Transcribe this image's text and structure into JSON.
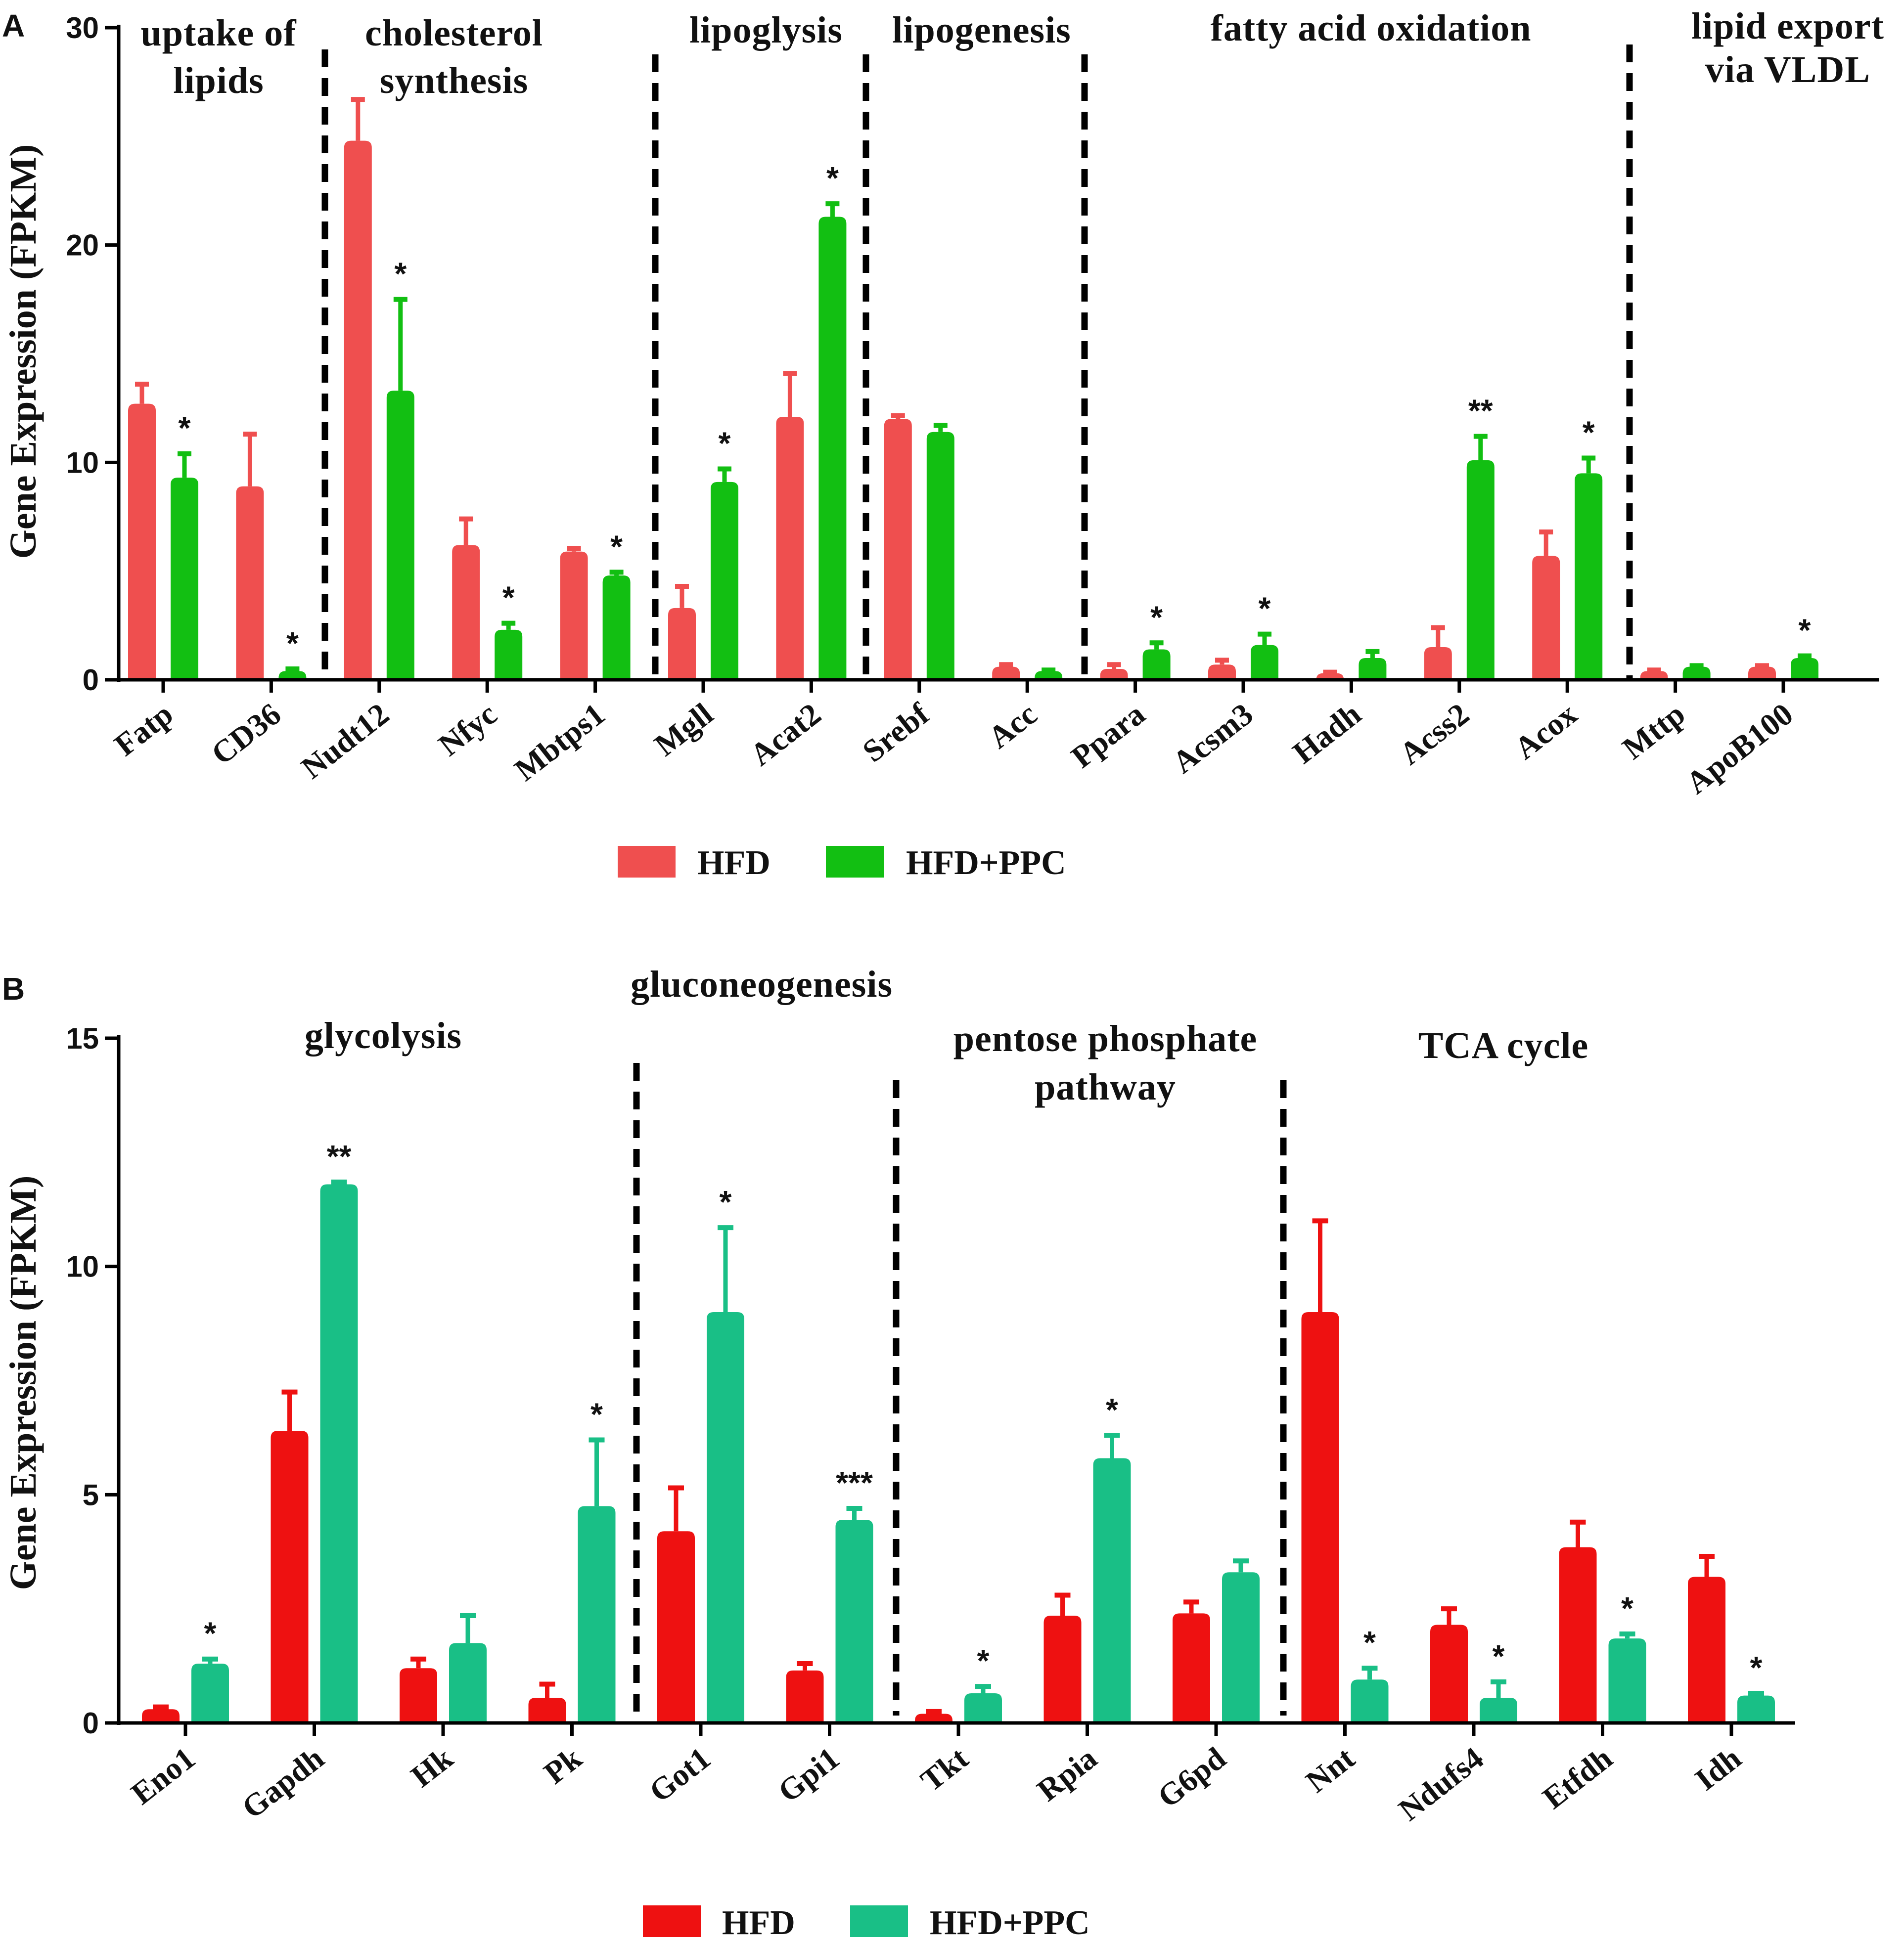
{
  "chart_data": [
    {
      "panel": "A",
      "type": "bar",
      "ylabel": "Gene Expression (FPKM)",
      "ylim": [
        0,
        30
      ],
      "yticks": [
        0,
        10,
        20,
        30
      ],
      "legend": {
        "position": "bottom",
        "entries": [
          "HFD",
          "HFD+PPC"
        ]
      },
      "colors": {
        "HFD": "#ef4f4f",
        "HFD+PPC": "#12bf12"
      },
      "categories": [
        "Fatp",
        "CD36",
        "Nudt12",
        "Nfyc",
        "Mbtps1",
        "Mgll",
        "Acat2",
        "Srebf",
        "Acc",
        "Ppara",
        "Acsm3",
        "Hadh",
        "Acss2",
        "Acox",
        "Mttp",
        "ApoB100"
      ],
      "series": [
        {
          "name": "HFD",
          "values": [
            12.7,
            8.9,
            24.8,
            6.2,
            5.9,
            3.3,
            12.1,
            12.0,
            0.6,
            0.5,
            0.7,
            0.3,
            1.5,
            5.7,
            0.4,
            0.6
          ],
          "errors": [
            0.9,
            2.4,
            1.9,
            1.2,
            0.15,
            1.0,
            2.0,
            0.15,
            0.1,
            0.2,
            0.2,
            0.05,
            0.9,
            1.1,
            0.05,
            0.05
          ]
        },
        {
          "name": "HFD+PPC",
          "values": [
            9.3,
            0.4,
            13.3,
            2.3,
            4.8,
            9.1,
            21.3,
            11.4,
            0.4,
            1.4,
            1.6,
            1.0,
            10.1,
            9.5,
            0.6,
            1.0
          ],
          "errors": [
            1.1,
            0.1,
            4.2,
            0.3,
            0.15,
            0.6,
            0.6,
            0.3,
            0.05,
            0.3,
            0.5,
            0.3,
            1.1,
            0.7,
            0.05,
            0.1
          ]
        }
      ],
      "significance": [
        "*",
        "*",
        "*",
        "*",
        "*",
        "*",
        "*",
        "",
        "",
        "*",
        "*",
        "",
        "**",
        "*",
        "",
        "*"
      ],
      "groups": [
        {
          "lines": [
            "uptake of",
            "lipids"
          ]
        },
        {
          "lines": [
            "cholesterol",
            "synthesis"
          ]
        },
        {
          "lines": [
            "lipoglysis"
          ]
        },
        {
          "lines": [
            "lipogenesis"
          ]
        },
        {
          "lines": [
            "fatty acid oxidation"
          ]
        },
        {
          "lines": [
            "lipid export",
            "via VLDL"
          ]
        }
      ]
    },
    {
      "panel": "B",
      "type": "bar",
      "ylabel": "Gene Expression (FPKM)",
      "ylim": [
        0,
        15
      ],
      "yticks": [
        0,
        5,
        10,
        15
      ],
      "legend": {
        "position": "bottom",
        "entries": [
          "HFD",
          "HFD+PPC"
        ]
      },
      "colors": {
        "HFD": "#ee1111",
        "HFD+PPC": "#19bf86"
      },
      "categories": [
        "Eno1",
        "Gapdh",
        "Hk",
        "Pk",
        "Got1",
        "Gpi1",
        "Tkt",
        "Rpia",
        "G6pd",
        "Nnt",
        "Ndufs4",
        "Etfdh",
        "Idh"
      ],
      "series": [
        {
          "name": "HFD",
          "values": [
            0.3,
            6.4,
            1.2,
            0.55,
            4.2,
            1.15,
            0.2,
            2.35,
            2.4,
            9.0,
            2.15,
            3.85,
            3.2
          ],
          "errors": [
            0.05,
            0.85,
            0.2,
            0.3,
            0.95,
            0.15,
            0.05,
            0.45,
            0.25,
            2.0,
            0.35,
            0.55,
            0.45
          ]
        },
        {
          "name": "HFD+PPC",
          "values": [
            1.3,
            11.8,
            1.75,
            4.75,
            9.0,
            4.45,
            0.65,
            5.8,
            3.3,
            0.95,
            0.55,
            1.85,
            0.6
          ]
        },
        {
          "name": "HFD+PPC-error",
          "values": [
            0.1,
            0.05,
            0.6,
            1.45,
            1.85,
            0.25,
            0.15,
            0.5,
            0.25,
            0.25,
            0.35,
            0.1,
            0.05
          ]
        }
      ],
      "significance": [
        "*",
        "**",
        "",
        "*",
        "*",
        "***",
        "*",
        "*",
        "",
        "*",
        "*",
        "*",
        "*"
      ],
      "groups": [
        {
          "lines": [
            "glycolysis"
          ]
        },
        {
          "lines": [
            "gluconeogenesis"
          ]
        },
        {
          "lines": [
            "pentose phosphate",
            "pathway"
          ]
        },
        {
          "lines": [
            "TCA cycle"
          ]
        }
      ]
    }
  ]
}
